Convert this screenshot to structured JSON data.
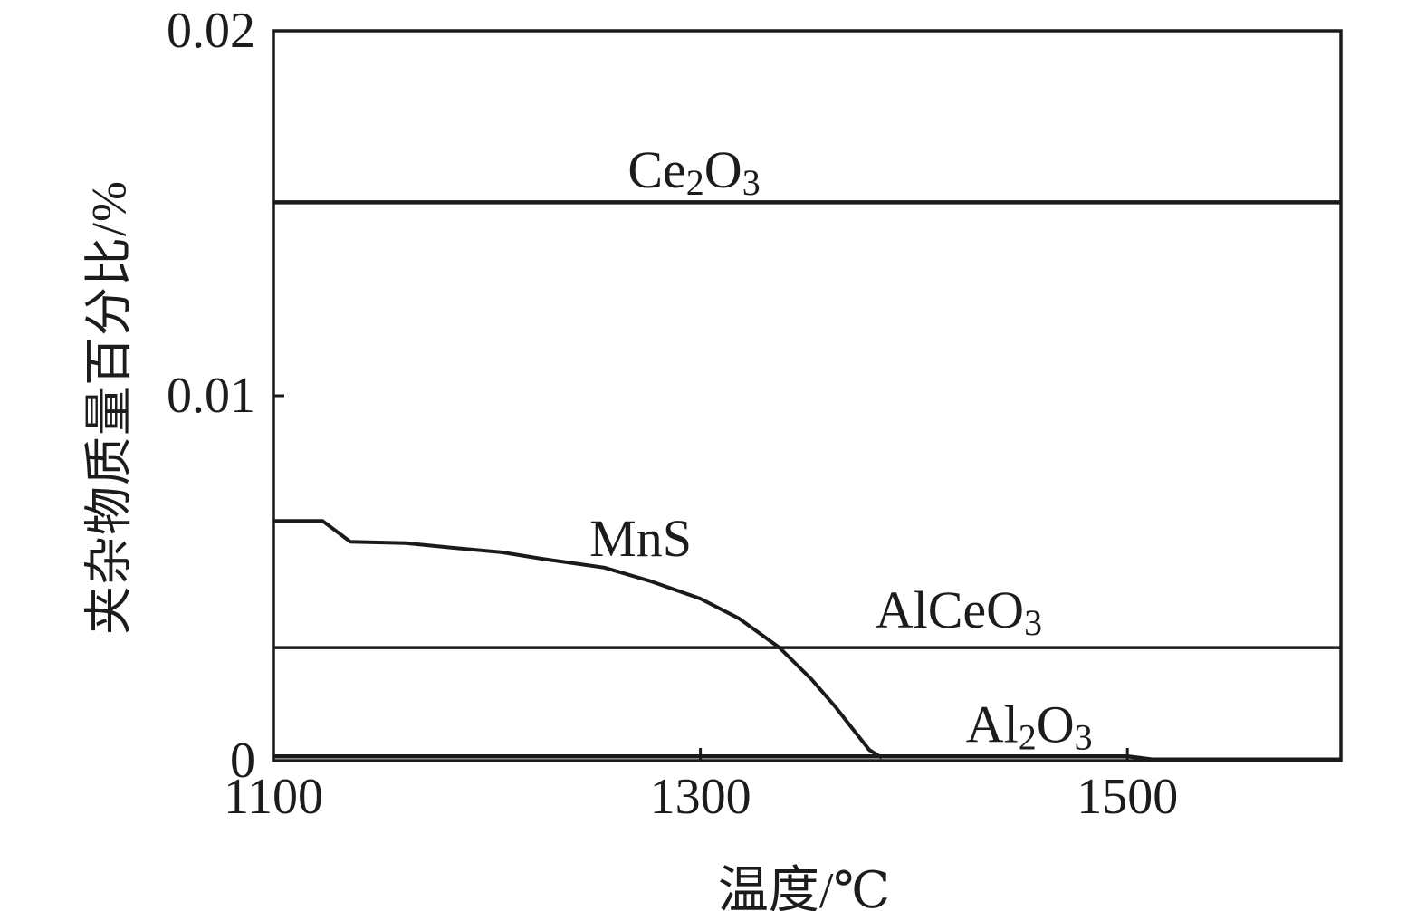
{
  "chart_data": {
    "type": "line",
    "title": "",
    "xlabel": "温度/℃",
    "ylabel": "夹杂物质量百分比/%",
    "xlim": [
      1100,
      1600
    ],
    "ylim": [
      0,
      0.02
    ],
    "xticks": {
      "values": [
        1100,
        1300,
        1500
      ],
      "labels": [
        "1100",
        "1300",
        "1500"
      ]
    },
    "yticks": {
      "values": [
        0,
        0.01,
        0.02
      ],
      "labels": [
        "0",
        "0.01",
        "0.02"
      ]
    },
    "grid": false,
    "legend": "inline-labels",
    "line_color": "#1a1a1a",
    "series": [
      {
        "name": "Ce2O3",
        "label_parts": [
          [
            "Ce",
            0
          ],
          [
            "2",
            1
          ],
          [
            "O",
            0
          ],
          [
            "3",
            1
          ]
        ],
        "label_anchor": {
          "x": 1297,
          "y": 0.0162
        },
        "stroke_width": 4.5,
        "points": [
          [
            1100,
            0.0153
          ],
          [
            1600,
            0.0153
          ]
        ]
      },
      {
        "name": "MnS",
        "label_parts": [
          [
            "MnS",
            0
          ]
        ],
        "label_anchor": {
          "x": 1272,
          "y": 0.0061
        },
        "stroke_width": 4,
        "points": [
          [
            1100,
            0.00657
          ],
          [
            1123,
            0.00657
          ],
          [
            1136,
            0.006
          ],
          [
            1162,
            0.00596
          ],
          [
            1185,
            0.00583
          ],
          [
            1207,
            0.00571
          ],
          [
            1226,
            0.00553
          ],
          [
            1255,
            0.00529
          ],
          [
            1277,
            0.00491
          ],
          [
            1300,
            0.00444
          ],
          [
            1318,
            0.0039
          ],
          [
            1337,
            0.0031
          ],
          [
            1352,
            0.00223
          ],
          [
            1363,
            0.00149
          ],
          [
            1372,
            0.00082
          ],
          [
            1379,
            0.0003
          ],
          [
            1385,
            8e-05
          ]
        ]
      },
      {
        "name": "AlCeO3",
        "label_parts": [
          [
            "AlCeO",
            0
          ],
          [
            "3",
            1
          ]
        ],
        "label_anchor": {
          "x": 1421,
          "y": 0.00415
        },
        "stroke_width": 3.5,
        "points": [
          [
            1100,
            0.0031
          ],
          [
            1600,
            0.0031
          ]
        ]
      },
      {
        "name": "Al2O3",
        "label_parts": [
          [
            "Al",
            0
          ],
          [
            "2",
            1
          ],
          [
            "O",
            0
          ],
          [
            "3",
            1
          ]
        ],
        "label_anchor": {
          "x": 1454,
          "y": 0.001
        },
        "stroke_width": 4.5,
        "points": [
          [
            1100,
            0.00012
          ],
          [
            1500,
            0.00012
          ],
          [
            1512,
            3e-05
          ],
          [
            1600,
            3e-05
          ]
        ]
      }
    ]
  }
}
